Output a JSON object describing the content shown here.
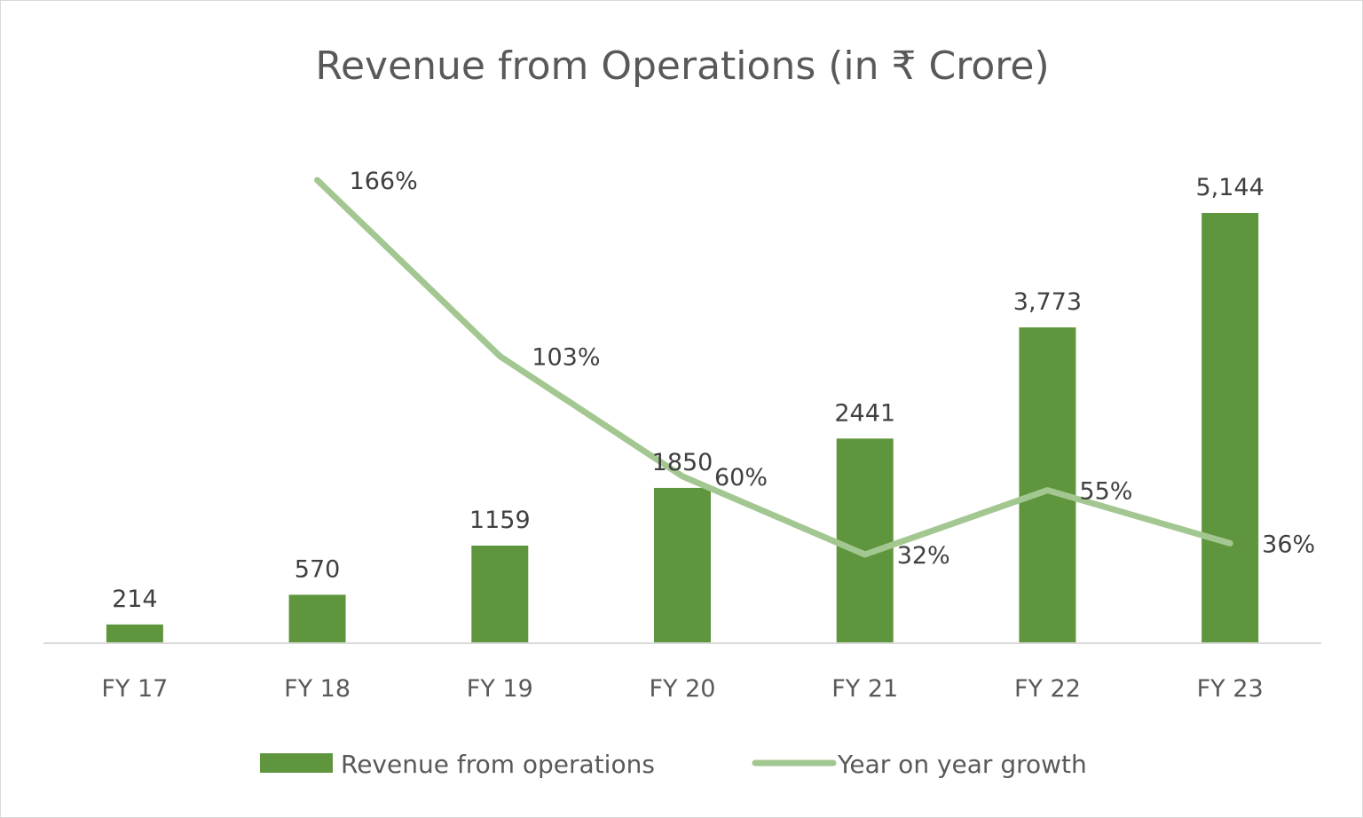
{
  "chart_data": {
    "type": "bar",
    "title": "Revenue from Operations (in ₹ Crore)",
    "categories": [
      "FY 17",
      "FY 18",
      "FY 19",
      "FY 20",
      "FY 21",
      "FY 22",
      "FY 23"
    ],
    "series": [
      {
        "name": "Revenue from operations",
        "type": "bar",
        "axis": "primary",
        "values": [
          214,
          570,
          1159,
          1850,
          2441,
          3773,
          5144
        ],
        "labels": [
          "214",
          "570",
          "1159",
          "1850",
          "2441",
          "3,773",
          "5,144"
        ],
        "color": "#5f963d"
      },
      {
        "name": "Year on year growth",
        "type": "line",
        "axis": "secondary",
        "values": [
          null,
          166,
          103,
          60,
          32,
          55,
          36
        ],
        "labels": [
          null,
          "166%",
          "103%",
          "60%",
          "32%",
          "55%",
          "36%"
        ],
        "unit": "%",
        "color": "#a3c791"
      }
    ],
    "legend_position": "bottom",
    "grid": false
  }
}
